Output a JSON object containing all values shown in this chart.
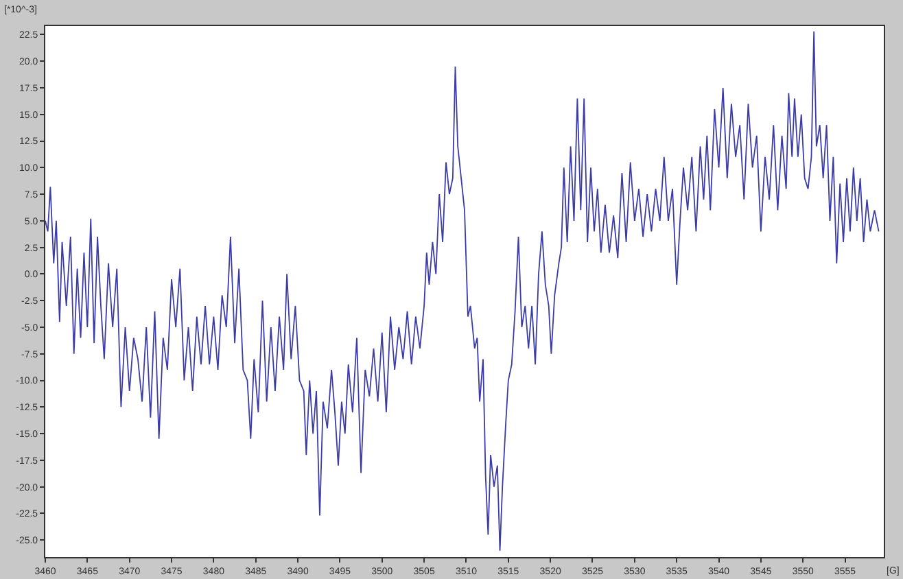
{
  "chart_data": {
    "type": "line",
    "xlabel": "[G]",
    "ylabel": "[*10^-3]",
    "line_style": "solid",
    "marker": "none",
    "grid": false,
    "xlim": [
      3460,
      3559.6
    ],
    "ylim": [
      -26.6,
      23.3
    ],
    "xticks": [
      3460,
      3465,
      3470,
      3475,
      3480,
      3485,
      3490,
      3495,
      3500,
      3505,
      3510,
      3515,
      3520,
      3525,
      3530,
      3535,
      3540,
      3545,
      3550,
      3555
    ],
    "yticks": [
      {
        "value": -25,
        "label": "-25.0"
      },
      -22.5,
      {
        "value": -20,
        "label": "-20.0"
      },
      -17.5,
      {
        "value": -15,
        "label": "-15.0"
      },
      -12.5,
      {
        "value": -10,
        "label": "-10.0"
      },
      -7.5,
      {
        "value": -5,
        "label": "-5.0"
      },
      -2.5,
      {
        "value": 0,
        "label": "0.0"
      },
      2.5,
      {
        "value": 5,
        "label": "5.0"
      },
      7.5,
      {
        "value": 10,
        "label": "10.0"
      },
      12.5,
      {
        "value": 15,
        "label": "15.0"
      },
      17.5,
      {
        "value": 20,
        "label": "20.0"
      },
      22.5
    ],
    "series": [
      {
        "color": "#3c3ca8",
        "x": [
          3460,
          3460.3,
          3460.6,
          3461,
          3461.3,
          3461.7,
          3462,
          3462.5,
          3463,
          3463.4,
          3463.8,
          3464.2,
          3464.6,
          3465,
          3465.4,
          3465.8,
          3466.2,
          3466.6,
          3467,
          3467.5,
          3468,
          3468.5,
          3469,
          3469.5,
          3470,
          3470.5,
          3471,
          3471.5,
          3472,
          3472.5,
          3473,
          3473.5,
          3474,
          3474.5,
          3475,
          3475.5,
          3476,
          3476.5,
          3477,
          3477.5,
          3478,
          3478.5,
          3479,
          3479.5,
          3480,
          3480.5,
          3481,
          3481.5,
          3482,
          3482.5,
          3483,
          3483.5,
          3484,
          3484.4,
          3484.8,
          3485.3,
          3485.8,
          3486.3,
          3486.8,
          3487.3,
          3487.8,
          3488.3,
          3488.7,
          3489.2,
          3489.7,
          3490.2,
          3490.7,
          3491,
          3491.4,
          3491.8,
          3492.2,
          3492.6,
          3493,
          3493.5,
          3494,
          3494.4,
          3494.8,
          3495.2,
          3495.6,
          3496,
          3496.5,
          3497,
          3497.5,
          3498,
          3498.5,
          3499,
          3499.5,
          3500,
          3500.5,
          3501,
          3501.5,
          3502,
          3502.5,
          3503,
          3503.5,
          3504,
          3504.5,
          3505,
          3505.3,
          3505.6,
          3506,
          3506.4,
          3506.8,
          3507.2,
          3507.6,
          3508,
          3508.4,
          3508.7,
          3509,
          3509.4,
          3509.8,
          3510.2,
          3510.5,
          3511,
          3511.3,
          3511.6,
          3512,
          3512.3,
          3512.6,
          3512.9,
          3513.3,
          3513.7,
          3514,
          3514.3,
          3514.7,
          3515,
          3515.4,
          3515.8,
          3516.2,
          3516.6,
          3517,
          3517.4,
          3517.8,
          3518.2,
          3518.6,
          3519,
          3519.4,
          3519.8,
          3520.1,
          3520.5,
          3521,
          3521.3,
          3521.6,
          3522,
          3522.4,
          3522.8,
          3523.2,
          3523.6,
          3524,
          3524.4,
          3524.8,
          3525.2,
          3525.6,
          3526,
          3526.5,
          3527,
          3527.5,
          3528,
          3528.5,
          3529,
          3529.5,
          3530,
          3530.5,
          3531,
          3531.5,
          3532,
          3532.5,
          3533,
          3533.5,
          3534,
          3534.5,
          3535,
          3535.4,
          3535.8,
          3536.3,
          3536.8,
          3537.3,
          3537.8,
          3538.2,
          3538.6,
          3539,
          3539.5,
          3540,
          3540.5,
          3541,
          3541.5,
          3542,
          3542.5,
          3543,
          3543.5,
          3544,
          3544.5,
          3545,
          3545.5,
          3546,
          3546.5,
          3547,
          3547.5,
          3548,
          3548.3,
          3548.7,
          3549,
          3549.4,
          3549.8,
          3550.2,
          3550.6,
          3551,
          3551.3,
          3551.6,
          3552,
          3552.4,
          3552.8,
          3553.2,
          3553.6,
          3554,
          3554.4,
          3554.8,
          3555.2,
          3555.6,
          3556,
          3556.4,
          3556.8,
          3557.2,
          3557.6,
          3558,
          3558.5,
          3559
        ],
        "values": [
          5,
          4,
          8.2,
          1,
          5,
          -4.5,
          3,
          -3,
          3.5,
          -7.5,
          0.5,
          -6,
          2,
          -5,
          5.2,
          -6.5,
          3.5,
          -3,
          -8,
          1,
          -5,
          0.5,
          -12.5,
          -5,
          -11,
          -6,
          -8,
          -12,
          -5,
          -13.5,
          -3.5,
          -15.5,
          -6,
          -9,
          -0.5,
          -5,
          0.5,
          -10,
          -5,
          -11,
          -4,
          -8.5,
          -3,
          -8.5,
          -4,
          -9,
          -2,
          -5,
          3.5,
          -6.5,
          0.5,
          -9,
          -10,
          -15.5,
          -8,
          -13,
          -2.5,
          -12,
          -5,
          -11,
          -4,
          -9,
          0,
          -8,
          -3,
          -10,
          -11,
          -17,
          -10,
          -15,
          -11,
          -22.7,
          -12,
          -14.5,
          -9,
          -13,
          -18,
          -12,
          -15,
          -8.5,
          -13,
          -6,
          -18.7,
          -9,
          -11.5,
          -7,
          -12,
          -5.5,
          -13,
          -4,
          -9,
          -5,
          -8,
          -3.5,
          -8.5,
          -4,
          -7,
          -3,
          2,
          -1,
          3,
          0,
          7.5,
          3,
          10.5,
          7.5,
          9,
          19.5,
          12,
          9,
          6,
          -4,
          -3,
          -7,
          -6,
          -12,
          -8,
          -19,
          -24.5,
          -17,
          -20,
          -18,
          -26,
          -20,
          -14,
          -10,
          -8.5,
          -3.5,
          3.5,
          -5,
          -3,
          -7,
          -3,
          -8.5,
          0,
          4,
          -1,
          -3,
          -7.5,
          -2,
          1,
          2.5,
          10,
          3,
          12,
          5,
          16.5,
          6,
          16.5,
          3,
          10,
          4,
          8,
          2,
          6.5,
          2,
          5.5,
          1.5,
          9.5,
          3,
          10.5,
          5,
          8,
          3.5,
          7.5,
          4,
          8,
          5,
          11,
          5,
          8,
          -1,
          5,
          10,
          6,
          11,
          4,
          12,
          7,
          13,
          6,
          15.5,
          10,
          17.5,
          9,
          16,
          11,
          14,
          7,
          16,
          10,
          13,
          4,
          11,
          7,
          14,
          6,
          13,
          8,
          17,
          11,
          16.5,
          11,
          15,
          9,
          8,
          11,
          22.8,
          12,
          14,
          9,
          14,
          5,
          11,
          1,
          8.5,
          3,
          9,
          4,
          10,
          5,
          9,
          3,
          7,
          4,
          6,
          4
        ]
      }
    ]
  }
}
